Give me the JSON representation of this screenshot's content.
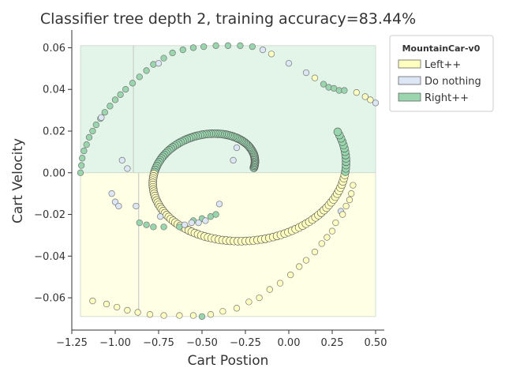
{
  "chart_data": {
    "type": "scatter",
    "title": "Classifier tree depth 2, training accuracy=83.44%",
    "xlabel": "Cart Postion",
    "ylabel": "Cart Velocity",
    "xlim": [
      -1.25,
      0.55
    ],
    "ylim": [
      -0.0755,
      0.0685
    ],
    "x_ticks": [
      -1.25,
      -1.0,
      -0.75,
      -0.5,
      -0.25,
      0.0,
      0.25,
      0.5
    ],
    "x_tick_labels": [
      "−1.25",
      "−1.00",
      "−0.75",
      "−0.50",
      "−0.25",
      "0.00",
      "0.25",
      "0.50"
    ],
    "y_ticks": [
      -0.06,
      -0.04,
      -0.02,
      0.0,
      0.02,
      0.04,
      0.06
    ],
    "y_tick_labels": [
      "−0.06",
      "−0.04",
      "−0.02",
      "0.00",
      "0.02",
      "0.04",
      "0.06"
    ],
    "grid": false,
    "legend": {
      "title": "MountainCar-v0",
      "position": "upper-right-outside",
      "entries": [
        "Left++",
        "Do nothing",
        "Right++"
      ]
    },
    "class_colors": {
      "Left++": "#ffffbf",
      "Do nothing": "#dce6f5",
      "Right++": "#99d6ae"
    },
    "decision_regions": [
      {
        "class": "Right++",
        "x": [
          -1.2,
          0.5
        ],
        "y": [
          0.0,
          0.061
        ],
        "color": "#e3f4e9"
      },
      {
        "class": "Left++",
        "x": [
          -1.2,
          0.5
        ],
        "y": [
          -0.069,
          0.0
        ],
        "color": "#ffffe6"
      }
    ],
    "split_lines": [
      {
        "x": -0.895,
        "y": [
          0.0,
          0.061
        ]
      },
      {
        "x": -0.865,
        "y": [
          -0.069,
          0.0
        ]
      }
    ],
    "series": [
      {
        "name": "Right++",
        "color": "#99d6ae",
        "points": [
          [
            -1.2,
            0.0
          ],
          [
            -1.195,
            0.0035
          ],
          [
            -1.19,
            0.007
          ],
          [
            -1.18,
            0.0105
          ],
          [
            -1.165,
            0.0135
          ],
          [
            -1.15,
            0.017
          ],
          [
            -1.13,
            0.02
          ],
          [
            -1.11,
            0.023
          ],
          [
            -1.085,
            0.026
          ],
          [
            -1.06,
            0.029
          ],
          [
            -1.03,
            0.032
          ],
          [
            -1.0,
            0.035
          ],
          [
            -0.97,
            0.0375
          ],
          [
            -0.94,
            0.04
          ],
          [
            -0.9,
            0.043
          ],
          [
            -0.86,
            0.046
          ],
          [
            -0.82,
            0.049
          ],
          [
            -0.78,
            0.052
          ],
          [
            -0.72,
            0.055
          ],
          [
            -0.67,
            0.0575
          ],
          [
            -0.61,
            0.059
          ],
          [
            -0.55,
            0.06
          ],
          [
            -0.49,
            0.0605
          ],
          [
            -0.42,
            0.061
          ],
          [
            -0.35,
            0.061
          ],
          [
            -0.28,
            0.061
          ],
          [
            -0.21,
            0.0605
          ],
          [
            0.2,
            0.0425
          ],
          [
            0.23,
            0.041
          ],
          [
            0.26,
            0.0405
          ],
          [
            0.29,
            0.0395
          ],
          [
            0.32,
            0.0395
          ],
          [
            -0.5,
            -0.069
          ],
          [
            -0.86,
            -0.024
          ],
          [
            -0.82,
            -0.025
          ],
          [
            -0.78,
            -0.026
          ],
          [
            -0.72,
            -0.026
          ],
          [
            -0.63,
            -0.026
          ],
          [
            -0.55,
            -0.023
          ],
          [
            -0.5,
            -0.022
          ],
          [
            -0.45,
            -0.021
          ],
          [
            -0.42,
            -0.02
          ]
        ]
      },
      {
        "name": "Do nothing",
        "color": "#dce6f5",
        "points": [
          [
            -1.08,
            0.0265
          ],
          [
            -0.75,
            0.0525
          ],
          [
            -0.15,
            0.059
          ],
          [
            0.0,
            0.0525
          ],
          [
            0.1,
            0.048
          ],
          [
            0.5,
            0.0335
          ],
          [
            0.3,
            -0.0185
          ],
          [
            -1.02,
            -0.01
          ],
          [
            -1.0,
            -0.014
          ],
          [
            -0.98,
            -0.016
          ],
          [
            -0.88,
            -0.016
          ],
          [
            -0.74,
            -0.021
          ],
          [
            -0.6,
            -0.025
          ],
          [
            -0.56,
            -0.024
          ],
          [
            -0.52,
            -0.024
          ],
          [
            -0.48,
            -0.023
          ],
          [
            -0.4,
            -0.015
          ],
          [
            -0.3,
            0.012
          ],
          [
            -0.32,
            0.006
          ],
          [
            -0.93,
            0.002
          ],
          [
            -0.96,
            0.006
          ]
        ]
      },
      {
        "name": "Left++",
        "color": "#ffffbf",
        "points": [
          [
            -0.1,
            0.057
          ],
          [
            0.15,
            0.0455
          ],
          [
            0.39,
            0.0385
          ],
          [
            0.44,
            0.0365
          ],
          [
            0.47,
            0.035
          ],
          [
            0.37,
            -0.006
          ],
          [
            0.36,
            -0.01
          ],
          [
            0.35,
            -0.013
          ],
          [
            0.33,
            -0.016
          ],
          [
            0.31,
            -0.02
          ],
          [
            0.27,
            -0.024
          ],
          [
            0.25,
            -0.028
          ],
          [
            0.22,
            -0.031
          ],
          [
            0.19,
            -0.034
          ],
          [
            0.15,
            -0.038
          ],
          [
            0.1,
            -0.042
          ],
          [
            0.06,
            -0.045
          ],
          [
            0.01,
            -0.049
          ],
          [
            -0.05,
            -0.053
          ],
          [
            -0.11,
            -0.056
          ],
          [
            -0.17,
            -0.06
          ],
          [
            -0.23,
            -0.062
          ],
          [
            -0.3,
            -0.065
          ],
          [
            -0.38,
            -0.0665
          ],
          [
            -0.45,
            -0.068
          ],
          [
            -0.55,
            -0.0685
          ],
          [
            -0.63,
            -0.0685
          ],
          [
            -0.72,
            -0.0685
          ],
          [
            -0.8,
            -0.068
          ],
          [
            -0.87,
            -0.067
          ],
          [
            -0.93,
            -0.066
          ],
          [
            -0.99,
            -0.0645
          ],
          [
            -1.05,
            -0.063
          ],
          [
            -1.13,
            -0.0615
          ]
        ]
      }
    ]
  }
}
